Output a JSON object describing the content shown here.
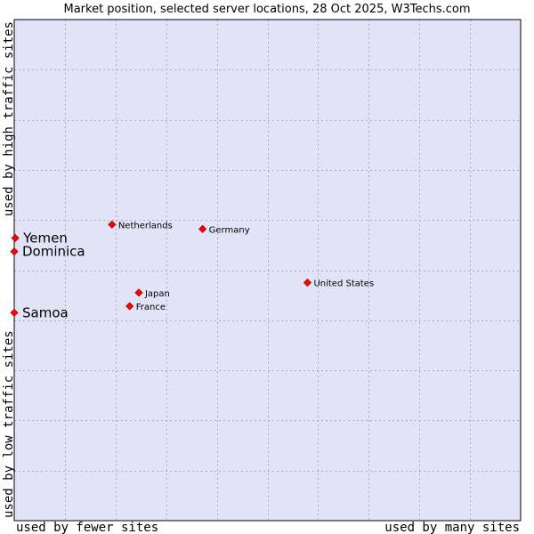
{
  "chart_data": {
    "type": "scatter",
    "title": "Market position, selected server locations, 28 Oct 2025, W3Techs.com",
    "xlabel_left": "used by fewer sites",
    "xlabel_right": "used by many sites",
    "ylabel_top": "used by high traffic sites",
    "ylabel_bottom": "used by low traffic sites",
    "xlim": [
      0,
      10
    ],
    "ylim": [
      0,
      10
    ],
    "grid": true,
    "colors": {
      "plot_bg": "#e3e3f8",
      "grid": "#aaaacc",
      "frame": "#000000",
      "marker": "#ff0000",
      "marker_stroke": "#aa0000"
    },
    "points": [
      {
        "name": "Netherlands",
        "x": 1.93,
        "y": 5.91,
        "highlight": false
      },
      {
        "name": "Germany",
        "x": 3.72,
        "y": 5.82,
        "highlight": false
      },
      {
        "name": "United States",
        "x": 5.79,
        "y": 4.75,
        "highlight": false
      },
      {
        "name": "Japan",
        "x": 2.46,
        "y": 4.55,
        "highlight": false
      },
      {
        "name": "France",
        "x": 2.28,
        "y": 4.28,
        "highlight": false
      },
      {
        "name": "Yemen",
        "x": 0.02,
        "y": 5.64,
        "highlight": true
      },
      {
        "name": "Dominica",
        "x": 0.0,
        "y": 5.37,
        "highlight": true
      },
      {
        "name": "Samoa",
        "x": 0.0,
        "y": 4.15,
        "highlight": true
      }
    ]
  }
}
